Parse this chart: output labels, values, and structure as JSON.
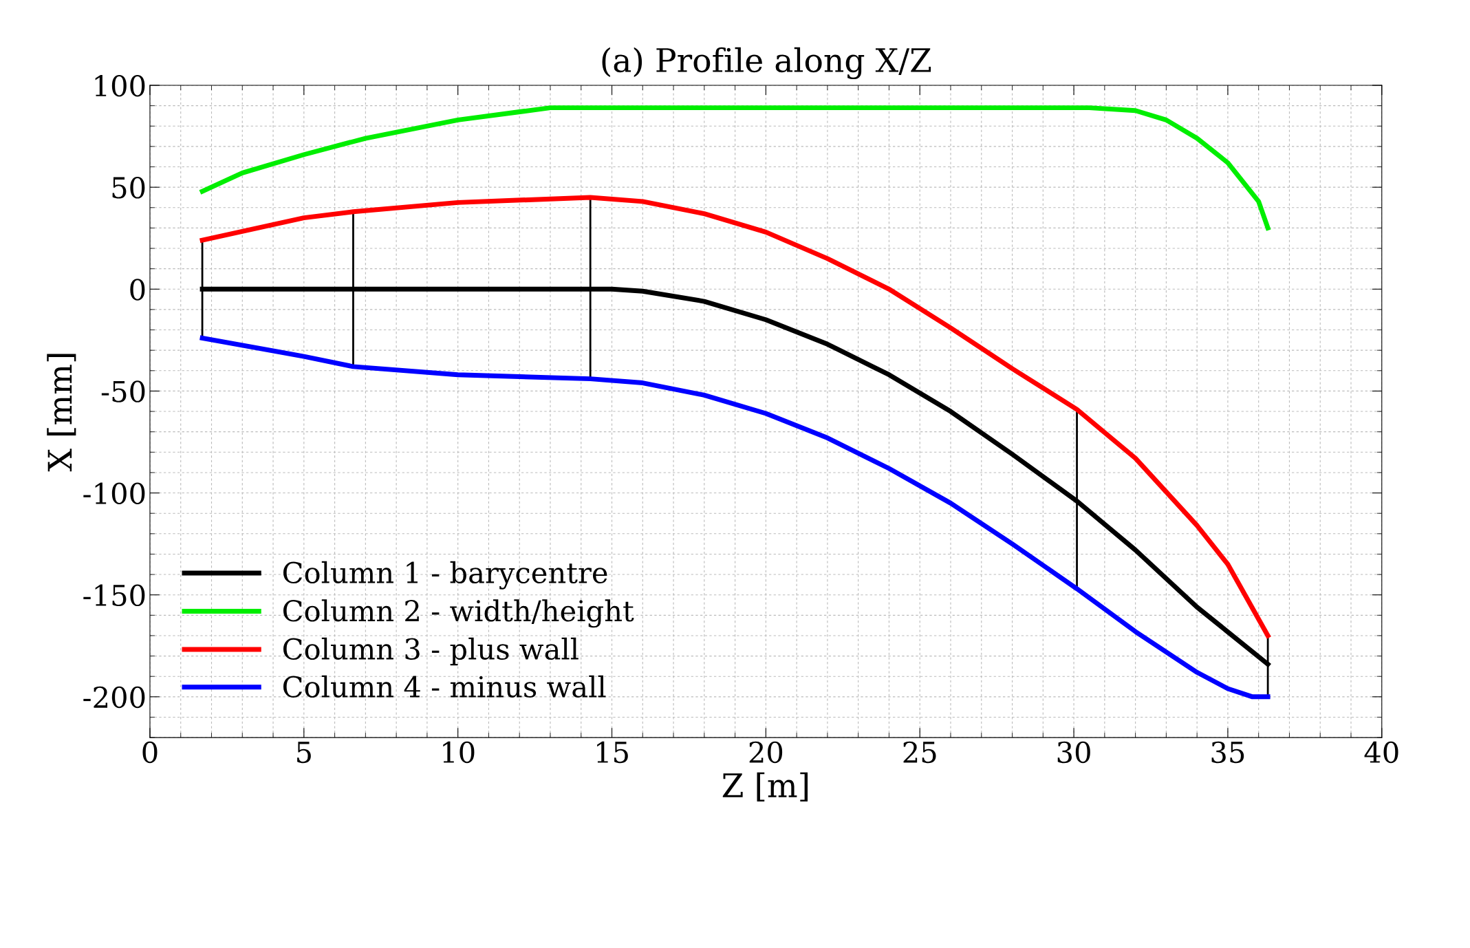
{
  "chart_data": {
    "type": "line",
    "title": "(a) Profile along X/Z",
    "xlabel": "Z [m]",
    "ylabel": "X [mm]",
    "xlim": [
      0,
      40
    ],
    "xticks": [
      0,
      5,
      10,
      15,
      20,
      25,
      30,
      35,
      40
    ],
    "ylim": [
      -220,
      100
    ],
    "yticks": [
      -200,
      -150,
      -100,
      -50,
      0,
      50,
      100
    ],
    "grid": true,
    "legend": "bottom left",
    "marker": "none",
    "line_style": "solid",
    "series": [
      {
        "name": "Column 1 - barycentre",
        "color": "#000000",
        "x": [
          1.7,
          6.6,
          10,
          14.3,
          15,
          16,
          18,
          20,
          22,
          24,
          26,
          28,
          30.1,
          32,
          34,
          36.3
        ],
        "values": [
          0,
          0,
          0,
          0,
          0,
          -1,
          -6,
          -15,
          -27,
          -42,
          -60,
          -81,
          -104,
          -128,
          -156,
          -184
        ]
      },
      {
        "name": "Column 2 - width/height",
        "color": "#00ee00",
        "x": [
          1.7,
          3,
          5,
          7,
          10,
          13,
          20,
          30.5,
          32,
          33,
          34,
          35,
          36,
          36.3
        ],
        "values": [
          48,
          57,
          66,
          74,
          83,
          89,
          89,
          89,
          87.6,
          83,
          74,
          62,
          43,
          30
        ]
      },
      {
        "name": "Column 3 - plus wall",
        "color": "#ff0000",
        "x": [
          1.7,
          5,
          6.6,
          10,
          14.3,
          16,
          18,
          20,
          22,
          24,
          26,
          28,
          30.1,
          32,
          34,
          35,
          36.3
        ],
        "values": [
          24,
          35,
          38,
          42.5,
          45,
          43,
          37,
          28,
          15,
          0,
          -19,
          -39,
          -59,
          -83,
          -116,
          -135,
          -170
        ]
      },
      {
        "name": "Column 4 - minus wall",
        "color": "#0000ff",
        "x": [
          1.7,
          5,
          6.6,
          10,
          14.3,
          16,
          18,
          20,
          22,
          24,
          26,
          28,
          30.1,
          32,
          34,
          35,
          35.8,
          36.3
        ],
        "values": [
          -24,
          -33,
          -38,
          -42,
          -44,
          -46,
          -52,
          -61,
          -73,
          -88,
          -105,
          -125,
          -147,
          -168,
          -188,
          -196,
          -200,
          -200
        ]
      },
      {
        "color": "#000000",
        "x": [
          1.7,
          1.7
        ],
        "values": [
          24,
          -24
        ]
      },
      {
        "color": "#000000",
        "x": [
          6.6,
          6.6
        ],
        "values": [
          38,
          -38
        ]
      },
      {
        "color": "#000000",
        "x": [
          14.3,
          14.3
        ],
        "values": [
          45,
          -44
        ]
      },
      {
        "color": "#000000",
        "x": [
          30.1,
          30.1
        ],
        "values": [
          -59,
          -147
        ]
      },
      {
        "color": "#000000",
        "x": [
          36.3,
          36.3
        ],
        "values": [
          -170,
          -200
        ]
      }
    ]
  }
}
